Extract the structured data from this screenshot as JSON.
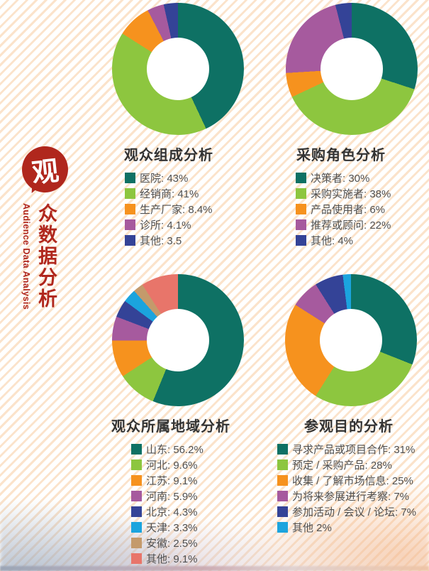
{
  "sidebar": {
    "bubble_char": "观",
    "vertical_title": "众数据分析",
    "english_title": "Audience Data Analysis"
  },
  "style_colors": {
    "accent_red": "#b0271d",
    "stripe": "#fbe3cb",
    "title_text": "#333333",
    "legend_text": "#4f4f4f",
    "donut_hole": "#ffffff"
  },
  "chart_data": [
    {
      "type": "pie",
      "variant": "donut",
      "title": "观众组成分析",
      "labels": [
        "医院",
        "经销商",
        "生产厂家",
        "诊所",
        "其他"
      ],
      "values": [
        43,
        41,
        8.4,
        4.1,
        3.5
      ],
      "legend": [
        "医院: 43%",
        "经销商: 41%",
        "生产厂家: 8.4%",
        "诊所: 4.1%",
        "其他: 3.5"
      ],
      "colors": [
        "#0e7164",
        "#8dc63f",
        "#f6921e",
        "#a65a9e",
        "#344397"
      ],
      "legend_position": "bottom",
      "start_angle_deg": 0,
      "direction": "clockwise"
    },
    {
      "type": "pie",
      "variant": "donut",
      "title": "采购角色分析",
      "labels": [
        "决策者",
        "采购实施者",
        "产品使用者",
        "推荐或顾问",
        "其他"
      ],
      "values": [
        30,
        38,
        6,
        22,
        4
      ],
      "legend": [
        "决策者: 30%",
        "采购实施者: 38%",
        "产品使用者: 6%",
        "推荐或顾问: 22%",
        "其他: 4%"
      ],
      "colors": [
        "#0e7164",
        "#8dc63f",
        "#f6921e",
        "#a65a9e",
        "#344397"
      ],
      "legend_position": "bottom",
      "start_angle_deg": 0,
      "direction": "clockwise"
    },
    {
      "type": "pie",
      "variant": "donut",
      "title": "观众所属地域分析",
      "labels": [
        "山东",
        "河北",
        "江苏",
        "河南",
        "北京",
        "天津",
        "安徽",
        "其他"
      ],
      "values": [
        56.2,
        9.6,
        9.1,
        5.9,
        4.3,
        3.3,
        2.5,
        9.1
      ],
      "legend": [
        "山东: 56.2%",
        "河北: 9.6%",
        "江苏: 9.1%",
        "河南: 5.9%",
        "北京: 4.3%",
        "天津: 3.3%",
        "安徽: 2.5%",
        "其他: 9.1%"
      ],
      "colors": [
        "#0e7164",
        "#8dc63f",
        "#f6921e",
        "#a65a9e",
        "#344397",
        "#1ba4de",
        "#c49a6b",
        "#e8756a"
      ],
      "legend_position": "bottom",
      "start_angle_deg": 0,
      "direction": "clockwise"
    },
    {
      "type": "pie",
      "variant": "donut",
      "title": "参观目的分析",
      "labels": [
        "寻求产品或项目合作",
        "预定 / 采购产品",
        "收集 / 了解市场信息",
        "为将来参展进行考察",
        "参加活动 / 会议 / 论坛",
        "其他"
      ],
      "values": [
        31,
        28,
        25,
        7,
        7,
        2
      ],
      "legend": [
        "寻求产品或项目合作: 31%",
        "预定 / 采购产品: 28%",
        "收集 / 了解市场信息: 25%",
        "为将来参展进行考察: 7%",
        "参加活动 / 会议 / 论坛: 7%",
        "其他 2%"
      ],
      "colors": [
        "#0e7164",
        "#8dc63f",
        "#f6921e",
        "#a65a9e",
        "#344397",
        "#1ba4de"
      ],
      "legend_position": "bottom",
      "start_angle_deg": 0,
      "direction": "clockwise"
    }
  ]
}
